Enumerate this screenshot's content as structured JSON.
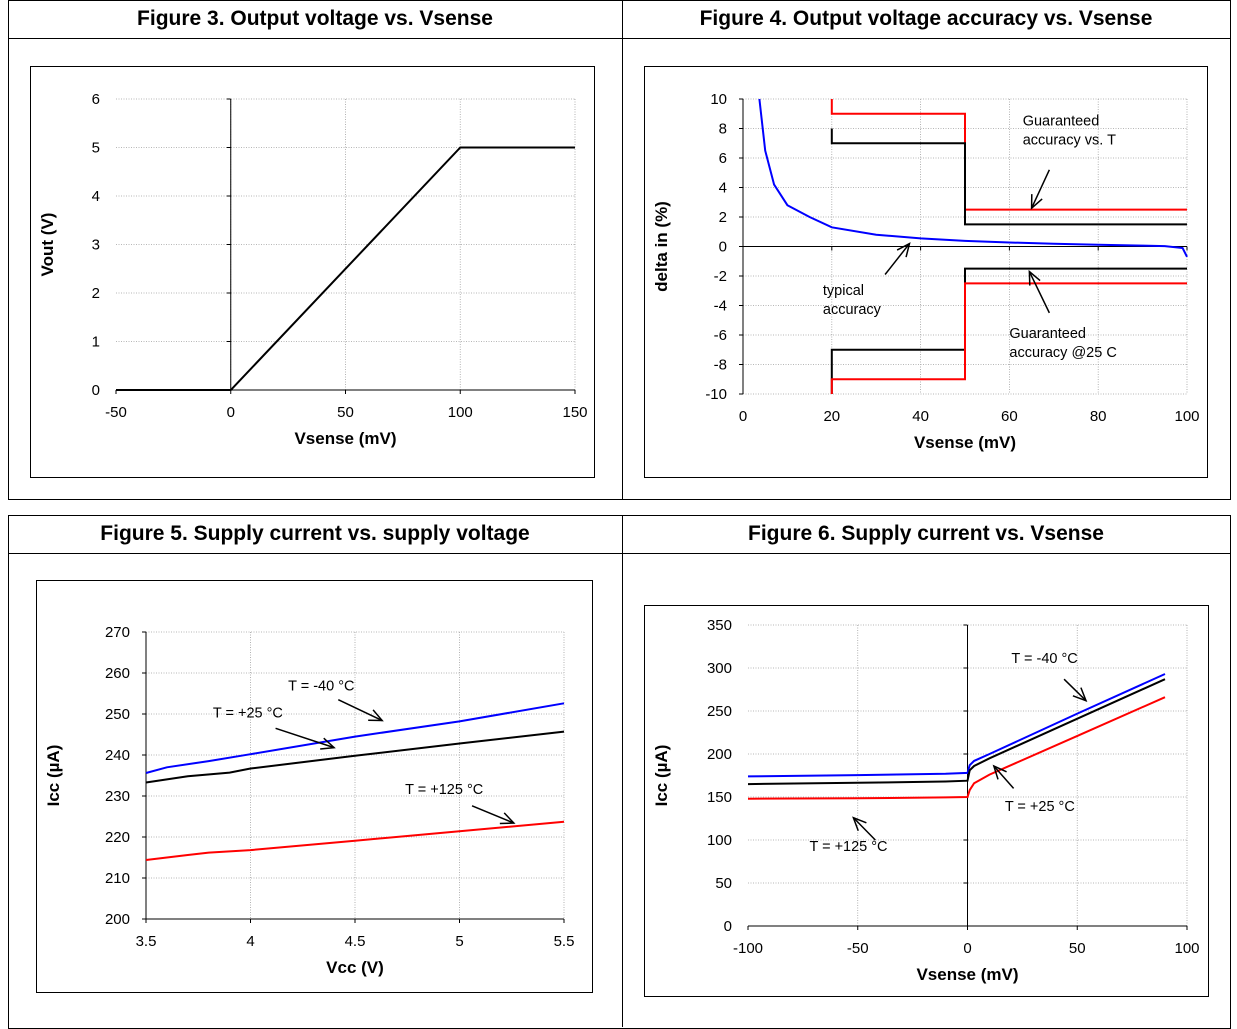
{
  "chart_data": [
    {
      "type": "line",
      "title": "Figure 3. Output voltage vs. Vsense",
      "xlabel": "Vsense (mV)",
      "ylabel": "Vout (V)",
      "xlim": [
        -50,
        150
      ],
      "ylim": [
        0,
        6
      ],
      "xticks": [
        -50,
        0,
        50,
        100,
        150
      ],
      "yticks": [
        0,
        1,
        2,
        3,
        4,
        5,
        6
      ],
      "grid": true,
      "series": [
        {
          "color": "#000000",
          "x": [
            -50,
            0,
            100,
            150
          ],
          "y": [
            0,
            0,
            5,
            5
          ]
        }
      ],
      "annotations": []
    },
    {
      "type": "line",
      "title": "Figure 4. Output voltage accuracy vs. Vsense",
      "xlabel": "Vsense (mV)",
      "ylabel": "delta in (%)",
      "xlim": [
        0,
        100
      ],
      "ylim": [
        -10,
        10
      ],
      "xticks": [
        0,
        20,
        40,
        60,
        80,
        100
      ],
      "yticks": [
        -10,
        -8,
        -6,
        -4,
        -2,
        0,
        2,
        4,
        6,
        8,
        10
      ],
      "grid": true,
      "series": [
        {
          "color": "#0000ff",
          "x": [
            3.7,
            5,
            7,
            10,
            15,
            20,
            30,
            40,
            50,
            60,
            70,
            80,
            90,
            95,
            99,
            100
          ],
          "y": [
            10,
            6.5,
            4.2,
            2.8,
            2.0,
            1.3,
            0.8,
            0.55,
            0.38,
            0.27,
            0.19,
            0.12,
            0.06,
            0.03,
            -0.1,
            -0.7
          ]
        },
        {
          "color": "#ff0000",
          "x": [
            20,
            20,
            50,
            50,
            100
          ],
          "y": [
            10,
            9,
            9,
            2.5,
            2.5
          ]
        },
        {
          "color": "#000000",
          "x": [
            20,
            20,
            50,
            50,
            100
          ],
          "y": [
            8,
            7,
            7,
            1.5,
            1.5
          ]
        },
        {
          "color": "#000000",
          "x": [
            20,
            20,
            50,
            50,
            100
          ],
          "y": [
            -10,
            -7,
            -7,
            -1.5,
            -1.5
          ]
        },
        {
          "color": "#ff0000",
          "x": [
            20,
            20,
            50,
            50,
            100
          ],
          "y": [
            -10,
            -9,
            -9,
            -2.5,
            -2.5
          ]
        }
      ],
      "annotations": [
        {
          "lines": [
            "Guaranteed",
            "accuracy vs. T"
          ],
          "x": 63,
          "y": 8.2,
          "arrow_from": [
            69,
            5.2
          ],
          "arrow_to": [
            65,
            2.6
          ]
        },
        {
          "lines": [
            "typical",
            "accuracy"
          ],
          "x": 18,
          "y": -3.3,
          "arrow_from": [
            32,
            -1.9
          ],
          "arrow_to": [
            37.5,
            0.2
          ]
        },
        {
          "lines": [
            "Guaranteed",
            "accuracy @25 C"
          ],
          "x": 60,
          "y": -6.2,
          "arrow_from": [
            69,
            -4.5
          ],
          "arrow_to": [
            64.5,
            -1.7
          ]
        }
      ]
    },
    {
      "type": "line",
      "title": "Figure 5. Supply current vs. supply voltage",
      "xlabel": "Vcc (V)",
      "ylabel": "Icc (µA)",
      "xlim": [
        3.5,
        5.5
      ],
      "ylim": [
        200,
        270
      ],
      "xticks": [
        3.5,
        4,
        4.5,
        5,
        5.5
      ],
      "yticks": [
        200,
        210,
        220,
        230,
        240,
        250,
        260,
        270
      ],
      "grid": true,
      "series": [
        {
          "color": "#0000ff",
          "x": [
            3.5,
            3.6,
            3.8,
            4.0,
            4.5,
            5.0,
            5.5
          ],
          "y": [
            235.6,
            237.0,
            238.5,
            240.2,
            244.5,
            248.2,
            252.6
          ]
        },
        {
          "color": "#000000",
          "x": [
            3.5,
            3.7,
            3.9,
            4.0,
            4.5,
            5.0,
            5.5
          ],
          "y": [
            233.3,
            234.8,
            235.7,
            236.7,
            239.8,
            242.8,
            245.7
          ]
        },
        {
          "color": "#ff0000",
          "x": [
            3.5,
            3.7,
            3.8,
            4.0,
            4.5,
            5.0,
            5.5
          ],
          "y": [
            214.4,
            215.6,
            216.2,
            216.8,
            219.1,
            221.4,
            223.7
          ]
        }
      ],
      "annotations": [
        {
          "lines": [
            "T = -40 °C"
          ],
          "x": 4.18,
          "y": 255.7,
          "arrow_from": [
            4.42,
            253.5
          ],
          "arrow_to": [
            4.63,
            248.4
          ]
        },
        {
          "lines": [
            "T = +25 °C"
          ],
          "x": 3.82,
          "y": 249.2,
          "arrow_from": [
            4.12,
            246.5
          ],
          "arrow_to": [
            4.4,
            241.8
          ]
        },
        {
          "lines": [
            "T = +125 °C"
          ],
          "x": 4.74,
          "y": 230.5,
          "arrow_from": [
            5.06,
            227.6
          ],
          "arrow_to": [
            5.26,
            223.4
          ]
        }
      ]
    },
    {
      "type": "line",
      "title": "Figure 6.  Supply current vs. Vsense",
      "xlabel": "Vsense (mV)",
      "ylabel": "Icc (µA)",
      "xlim": [
        -100,
        100
      ],
      "ylim": [
        0,
        350
      ],
      "xticks": [
        -100,
        -50,
        0,
        50,
        100
      ],
      "yticks": [
        0,
        50,
        100,
        150,
        200,
        250,
        300,
        350
      ],
      "grid": true,
      "series": [
        {
          "color": "#0000ff",
          "x": [
            -100,
            -50,
            -10,
            0,
            1,
            3,
            10,
            50,
            90
          ],
          "y": [
            174,
            175.5,
            177,
            178,
            187,
            192,
            200,
            247,
            293
          ]
        },
        {
          "color": "#000000",
          "x": [
            -100,
            -50,
            -10,
            0,
            1,
            3,
            10,
            50,
            90
          ],
          "y": [
            165,
            166.5,
            168,
            169,
            181,
            186,
            195,
            241,
            287
          ]
        },
        {
          "color": "#ff0000",
          "x": [
            -100,
            -50,
            -10,
            0,
            1,
            3,
            10,
            50,
            90
          ],
          "y": [
            148,
            148.5,
            149.5,
            150,
            158,
            166,
            176,
            221,
            266
          ]
        }
      ],
      "annotations": [
        {
          "lines": [
            "T = -40 °C"
          ],
          "x": 20,
          "y": 306,
          "arrow_from": [
            44,
            287
          ],
          "arrow_to": [
            54,
            262
          ]
        },
        {
          "lines": [
            "T = +25 °C"
          ],
          "x": 17,
          "y": 134,
          "arrow_from": [
            21,
            160
          ],
          "arrow_to": [
            12,
            186
          ]
        },
        {
          "lines": [
            "T = +125 °C"
          ],
          "x": -72,
          "y": 87,
          "arrow_from": [
            -42,
            100
          ],
          "arrow_to": [
            -52,
            126
          ]
        }
      ]
    }
  ]
}
